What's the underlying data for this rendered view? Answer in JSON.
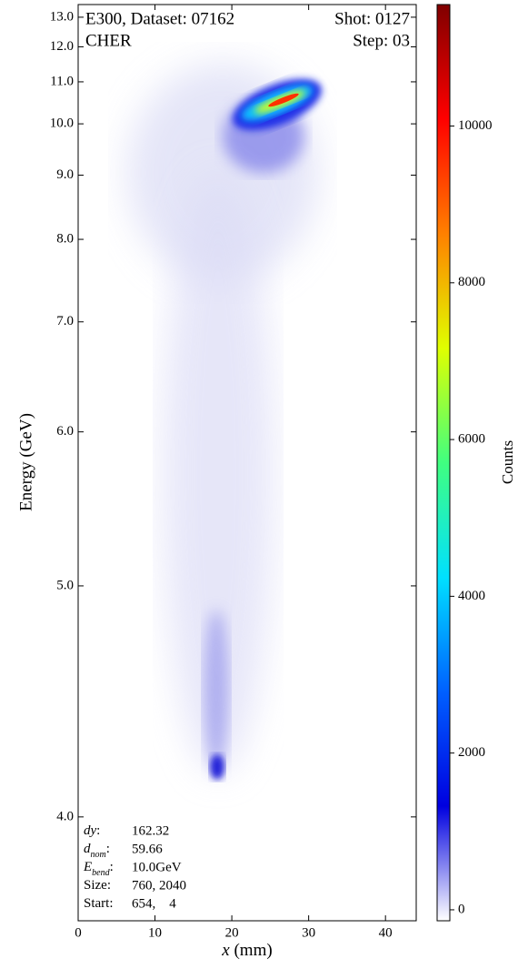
{
  "chart_data": {
    "type": "heatmap",
    "title_left": [
      "E300, Dataset: 07162",
      "CHER"
    ],
    "title_right": [
      "Shot: 0127",
      "Step: 03"
    ],
    "xlabel": {
      "var": "x",
      "unit": "(mm)"
    },
    "ylabel": "Energy (GeV)",
    "yscale": "inverse",
    "xlim": [
      0,
      44
    ],
    "xticks": [
      0,
      10,
      20,
      30,
      40
    ],
    "ylim": [
      3.67,
      13.48
    ],
    "yticks": [
      {
        "value": 4,
        "label": "4.0"
      },
      {
        "value": 5,
        "label": "5.0"
      },
      {
        "value": 6,
        "label": "6.0"
      },
      {
        "value": 7,
        "label": "7.0"
      },
      {
        "value": 8,
        "label": "8.0"
      },
      {
        "value": 9,
        "label": "9.0"
      },
      {
        "value": 10,
        "label": "10.0"
      },
      {
        "value": 11,
        "label": "11.0"
      },
      {
        "value": 12,
        "label": "12.0"
      },
      {
        "value": 13,
        "label": "13.0"
      }
    ],
    "colorbar": {
      "label": "Counts",
      "lim": [
        -140,
        11550
      ],
      "ticks": [
        0,
        2000,
        4000,
        6000,
        8000,
        10000
      ],
      "colormap": [
        "#ffffff",
        "#0000e0",
        "#0060ff",
        "#00e0ff",
        "#40ff80",
        "#e0ff00",
        "#ff8000",
        "#ff0000",
        "#800000"
      ]
    },
    "info": [
      {
        "label": "dy",
        "suffix": ":",
        "value": "162.32"
      },
      {
        "label": "d",
        "sub": "nom",
        "suffix": ":",
        "value": "59.66"
      },
      {
        "label": "E",
        "sub": "bend",
        "suffix": ":",
        "value": "10.0GeV"
      },
      {
        "label": "Size:",
        "value": "760, 2040"
      },
      {
        "label": "Start:",
        "value": "654,    4"
      }
    ]
  }
}
